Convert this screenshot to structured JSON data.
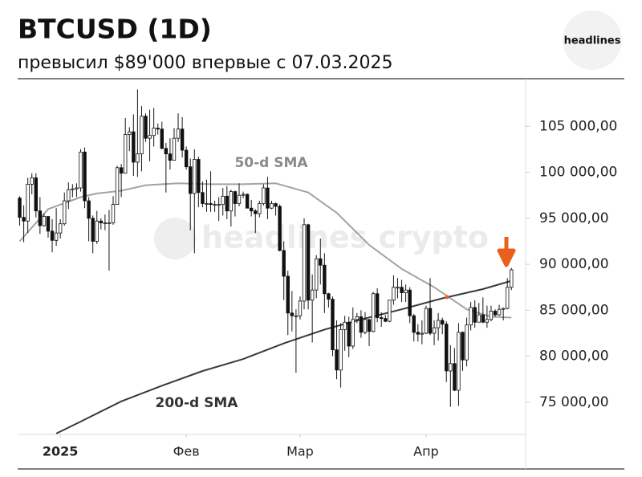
{
  "chart_data": {
    "type": "candlestick",
    "title": "BTCUSD (1D)",
    "subtitle": "превысил $89'000 впервые с 07.03.2025",
    "logo": "headlines",
    "watermark": "headlines crypto",
    "open": [
      97200,
      95100,
      94700,
      98700,
      99400,
      95800,
      94200,
      95200,
      93600,
      92600,
      93400,
      94400,
      96900,
      98100,
      98200,
      98300,
      102200,
      96900,
      95000,
      92500,
      94700,
      94500,
      94500,
      94500,
      96500,
      100500,
      99900,
      104100,
      104400,
      101100,
      102000,
      106100,
      103700,
      104000,
      104800,
      104700,
      102600,
      102000,
      101300,
      103700,
      104700,
      102400,
      100600,
      97700,
      101400,
      97800,
      96600,
      96600,
      96500,
      96500,
      96500,
      97400,
      95800,
      97900,
      96600,
      97500,
      97600,
      96100,
      95800,
      95500,
      96600,
      98300,
      96100,
      96600,
      96300,
      91500,
      88700,
      84700,
      84400,
      84400,
      86000,
      94300,
      86100,
      87200,
      90600,
      89900,
      86800,
      86200,
      80700,
      78500,
      82900,
      83700,
      81100,
      84000,
      84300,
      82600,
      84000,
      82700,
      86800,
      84200,
      84100,
      83800,
      86100,
      87500,
      87500,
      86900,
      87200,
      84400,
      82600,
      82400,
      82500,
      85200,
      82500,
      83100,
      83900,
      83500,
      78400,
      79200,
      76300,
      82600,
      79600,
      83400,
      85300,
      83700,
      84500,
      83700,
      84000,
      84900,
      84500,
      85100,
      85200,
      87500
    ],
    "high": [
      97400,
      96400,
      99400,
      99900,
      99900,
      97300,
      95500,
      95200,
      94900,
      96100,
      94900,
      97800,
      98900,
      98700,
      98800,
      102500,
      102700,
      97300,
      95300,
      95800,
      95000,
      95400,
      95900,
      97400,
      100700,
      100900,
      105900,
      104900,
      106300,
      109000,
      107200,
      106400,
      106800,
      107000,
      105300,
      105500,
      103200,
      103700,
      104800,
      106400,
      106000,
      102800,
      101500,
      102500,
      101700,
      99000,
      99200,
      100100,
      96900,
      97300,
      98300,
      98500,
      98100,
      98000,
      98800,
      97900,
      97700,
      97000,
      96000,
      96900,
      98700,
      99500,
      96900,
      96700,
      96500,
      92500,
      89300,
      87100,
      85100,
      86500,
      95000,
      94400,
      88900,
      91000,
      92800,
      91200,
      86900,
      86500,
      83900,
      83600,
      84400,
      84300,
      85300,
      84700,
      85000,
      84800,
      84000,
      87000,
      87400,
      84800,
      84500,
      86100,
      88800,
      88500,
      88300,
      87800,
      87500,
      84600,
      83500,
      83900,
      85500,
      88500,
      83900,
      84700,
      84200,
      83800,
      81200,
      80900,
      83600,
      82700,
      84200,
      85900,
      86100,
      85800,
      86400,
      85500,
      85500,
      85100,
      85600,
      85300,
      88500,
      89600
    ],
    "low": [
      94200,
      92400,
      93400,
      97600,
      95100,
      93300,
      94100,
      92900,
      91300,
      92000,
      92800,
      94200,
      96000,
      97300,
      97300,
      97900,
      96100,
      92500,
      91200,
      92200,
      93800,
      93700,
      89300,
      94300,
      96500,
      97300,
      99900,
      102300,
      99600,
      99500,
      100100,
      103300,
      101200,
      102800,
      104100,
      102500,
      97800,
      100300,
      101300,
      103300,
      101600,
      100300,
      93700,
      91200,
      96200,
      96200,
      95700,
      95700,
      95700,
      94700,
      95300,
      94900,
      94100,
      95200,
      96300,
      97200,
      96100,
      95200,
      93400,
      95100,
      96400,
      94900,
      96000,
      95300,
      91400,
      86100,
      82300,
      82700,
      78200,
      84000,
      85100,
      85100,
      81500,
      86300,
      87800,
      84700,
      85300,
      80000,
      77500,
      76600,
      80600,
      79900,
      80800,
      83600,
      82000,
      82400,
      81100,
      82600,
      83700,
      83200,
      83700,
      83700,
      85600,
      86300,
      85900,
      85900,
      83600,
      81600,
      81600,
      81300,
      82400,
      82300,
      81200,
      81700,
      82400,
      77200,
      74500,
      76200,
      74600,
      78400,
      78900,
      82800,
      83100,
      83700,
      83600,
      83100,
      83800,
      84300,
      84400,
      83900,
      85100,
      87200
    ],
    "close": [
      95100,
      94700,
      98700,
      99400,
      95800,
      94200,
      95200,
      93600,
      92600,
      93400,
      94400,
      96900,
      98100,
      98200,
      98300,
      102200,
      96900,
      95000,
      92500,
      94700,
      94500,
      94500,
      94500,
      96500,
      100500,
      99900,
      104100,
      104400,
      101100,
      102000,
      106100,
      103700,
      104000,
      104800,
      104700,
      102600,
      102000,
      101300,
      103700,
      104700,
      102400,
      100600,
      97700,
      101400,
      97800,
      96600,
      96600,
      96500,
      96500,
      96500,
      97400,
      95800,
      97900,
      96600,
      97500,
      97600,
      96100,
      95800,
      95500,
      96600,
      98300,
      96100,
      96600,
      96300,
      91500,
      88700,
      84700,
      84400,
      84400,
      86000,
      94300,
      86100,
      87200,
      90600,
      89900,
      86800,
      86200,
      80700,
      78500,
      82900,
      83700,
      81100,
      84000,
      84300,
      82600,
      84000,
      82700,
      86800,
      84200,
      84100,
      83800,
      86100,
      87500,
      87500,
      86900,
      87200,
      84400,
      82600,
      82400,
      82500,
      85200,
      82500,
      83100,
      83900,
      83500,
      78400,
      79200,
      76300,
      82600,
      79600,
      83400,
      85300,
      83700,
      84500,
      83700,
      84000,
      84900,
      84500,
      85100,
      85200,
      87500,
      89400
    ],
    "up_color": "#ffffff",
    "down_color": "#111111",
    "lines": [
      {
        "name": "50-d SMA",
        "color": "#a3a3a3",
        "x": [
          0,
          7,
          15,
          19,
          25,
          31,
          39,
          47,
          55,
          63,
          71,
          78,
          86,
          94,
          102,
          110,
          116,
          121
        ],
        "values": [
          92500,
          96000,
          97300,
          97700,
          98000,
          98600,
          98800,
          98700,
          98700,
          98800,
          97800,
          95600,
          92100,
          89500,
          87500,
          85100,
          84300,
          84200
        ]
      },
      {
        "name": "200-d SMA",
        "color": "#3a3a3a",
        "x": [
          9,
          15,
          25,
          35,
          45,
          55,
          65,
          75,
          84,
          94,
          104,
          114,
          121
        ],
        "values": [
          71600,
          72900,
          75100,
          76800,
          78400,
          79700,
          81400,
          82900,
          84000,
          85100,
          86300,
          87300,
          88200
        ]
      }
    ],
    "xlim": [
      -0.5,
      124.5
    ],
    "xticks": [
      {
        "value": 10,
        "label": "2025"
      },
      {
        "value": 41,
        "label": "Фев"
      },
      {
        "value": 69,
        "label": "Мар"
      },
      {
        "value": 100,
        "label": "Апр"
      }
    ],
    "ylim": [
      71500,
      110000
    ],
    "yticks": [
      {
        "value": 75000,
        "label": "75 000,00"
      },
      {
        "value": 80000,
        "label": "80 000,00"
      },
      {
        "value": 85000,
        "label": "85 000,00"
      },
      {
        "value": 90000,
        "label": "90 000,00"
      },
      {
        "value": 95000,
        "label": "95 000,00"
      },
      {
        "value": 100000,
        "label": "100 000,00"
      },
      {
        "value": 105000,
        "label": "105 000,00"
      }
    ]
  }
}
